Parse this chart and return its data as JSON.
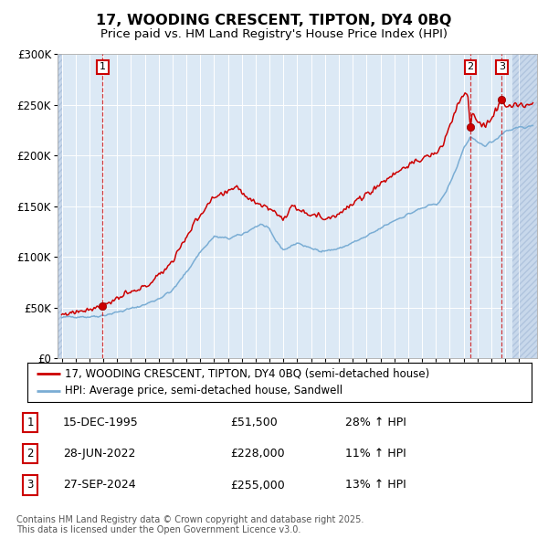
{
  "title": "17, WOODING CRESCENT, TIPTON, DY4 0BQ",
  "subtitle": "Price paid vs. HM Land Registry's House Price Index (HPI)",
  "bg_color": "#dce9f5",
  "hatch_color": "#c8d8eb",
  "red_line_color": "#cc0000",
  "blue_line_color": "#7aadd4",
  "grid_color": "#ffffff",
  "sale_dates": [
    1995.958,
    2022.493,
    2024.747
  ],
  "sale_prices": [
    51500,
    228000,
    255000
  ],
  "sale_labels": [
    "1",
    "2",
    "3"
  ],
  "legend_entries": [
    "17, WOODING CRESCENT, TIPTON, DY4 0BQ (semi-detached house)",
    "HPI: Average price, semi-detached house, Sandwell"
  ],
  "table_rows": [
    {
      "num": "1",
      "date": "15-DEC-1995",
      "price": "£51,500",
      "hpi": "28% ↑ HPI"
    },
    {
      "num": "2",
      "date": "28-JUN-2022",
      "price": "£228,000",
      "hpi": "11% ↑ HPI"
    },
    {
      "num": "3",
      "date": "27-SEP-2024",
      "price": "£255,000",
      "hpi": "13% ↑ HPI"
    }
  ],
  "footer": "Contains HM Land Registry data © Crown copyright and database right 2025.\nThis data is licensed under the Open Government Licence v3.0.",
  "ylim": [
    0,
    300000
  ],
  "yticks": [
    0,
    50000,
    100000,
    150000,
    200000,
    250000,
    300000
  ],
  "ytick_labels": [
    "£0",
    "£50K",
    "£100K",
    "£150K",
    "£200K",
    "£250K",
    "£300K"
  ],
  "xmin": 1992.7,
  "xmax": 2027.3
}
